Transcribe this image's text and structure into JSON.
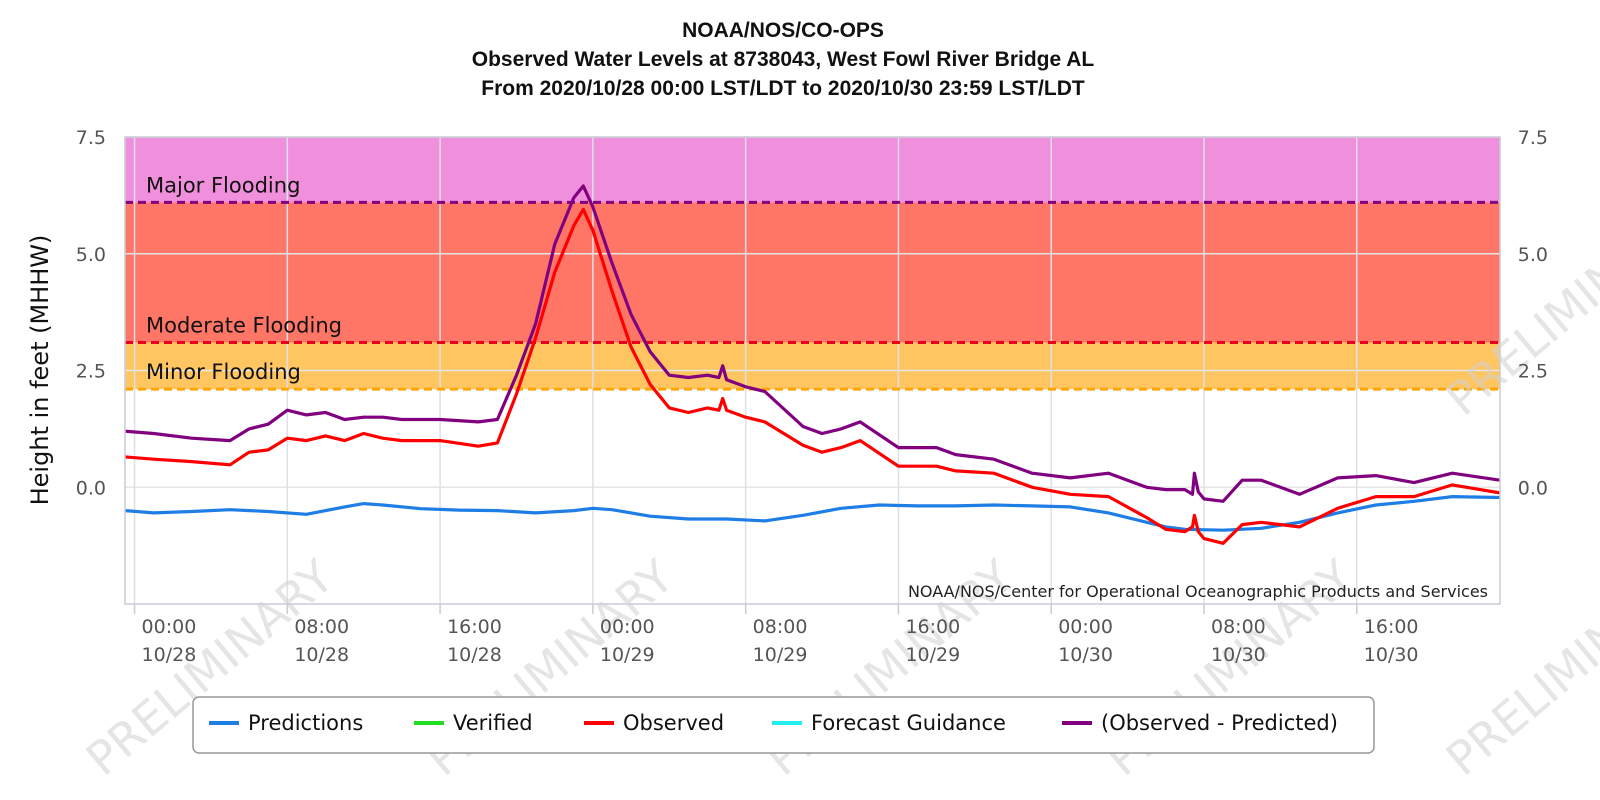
{
  "chart_data": {
    "type": "line",
    "title": "NOAA/NOS/CO-OPS",
    "subtitle_lines": [
      "Observed Water Levels at 8738043, West Fowl River Bridge AL",
      "From 2020/10/28 00:00 LST/LDT to 2020/10/30 23:59 LST/LDT"
    ],
    "ylabel": "Height in feet (MHHW)",
    "ylim": [
      -2.5,
      7.5
    ],
    "xlim_hours": [
      -0.5,
      71.5
    ],
    "y_ticks": [
      {
        "value": 7.5,
        "label": "7.5"
      },
      {
        "value": 5.0,
        "label": "5.0"
      },
      {
        "value": 2.5,
        "label": "2.5"
      },
      {
        "value": 0.0,
        "label": "0.0"
      }
    ],
    "x_ticks": [
      {
        "hour": 0,
        "time": "00:00",
        "date": "10/28"
      },
      {
        "hour": 8,
        "time": "08:00",
        "date": "10/28"
      },
      {
        "hour": 16,
        "time": "16:00",
        "date": "10/28"
      },
      {
        "hour": 24,
        "time": "00:00",
        "date": "10/29"
      },
      {
        "hour": 32,
        "time": "08:00",
        "date": "10/29"
      },
      {
        "hour": 40,
        "time": "16:00",
        "date": "10/29"
      },
      {
        "hour": 48,
        "time": "00:00",
        "date": "10/30"
      },
      {
        "hour": 56,
        "time": "08:00",
        "date": "10/30"
      },
      {
        "hour": 64,
        "time": "16:00",
        "date": "10/30"
      }
    ],
    "thresholds": [
      {
        "name": "Major Flooding",
        "value": 6.1,
        "color": "#800080",
        "band_color": "#f08fdb"
      },
      {
        "name": "Moderate Flooding",
        "value": 3.1,
        "color": "#e8001c",
        "band_color": "#ff7566"
      },
      {
        "name": "Minor Flooding",
        "value": 2.1,
        "color": "#ffa500",
        "band_color": "#ffc560"
      }
    ],
    "credit": "NOAA/NOS/Center for Operational Oceanographic Products and Services",
    "watermark": "PRELIMINARY",
    "legend": {
      "placement": "bottom",
      "items": [
        {
          "name": "Predictions",
          "color": "#1e7ee6"
        },
        {
          "name": "Verified",
          "color": "#22dd22"
        },
        {
          "name": "Observed",
          "color": "#ff0000"
        },
        {
          "name": "Forecast Guidance",
          "color": "#22eeee"
        },
        {
          "name": "(Observed - Predicted)",
          "color": "#800080"
        }
      ]
    },
    "series": [
      {
        "name": "Predictions",
        "color": "#1e7ee6",
        "x": [
          -0.5,
          1,
          3,
          5,
          7,
          9,
          11,
          12,
          13,
          15,
          17,
          19,
          21,
          23,
          24,
          25,
          27,
          29,
          31,
          33,
          35,
          37,
          39,
          41,
          43,
          45,
          47,
          49,
          51,
          53,
          54,
          55,
          57,
          59,
          61,
          63,
          65,
          67,
          69,
          71.5
        ],
        "y": [
          -0.5,
          -0.55,
          -0.52,
          -0.48,
          -0.52,
          -0.58,
          -0.42,
          -0.35,
          -0.38,
          -0.46,
          -0.49,
          -0.5,
          -0.55,
          -0.5,
          -0.45,
          -0.48,
          -0.62,
          -0.68,
          -0.68,
          -0.72,
          -0.6,
          -0.45,
          -0.38,
          -0.4,
          -0.4,
          -0.38,
          -0.4,
          -0.42,
          -0.55,
          -0.75,
          -0.85,
          -0.9,
          -0.92,
          -0.88,
          -0.75,
          -0.55,
          -0.38,
          -0.3,
          -0.2,
          -0.22
        ]
      },
      {
        "name": "Observed",
        "color": "#ff0000",
        "x": [
          -0.5,
          1,
          3,
          5,
          6,
          7,
          8,
          9,
          10,
          11,
          12,
          13,
          14,
          16,
          18,
          19,
          20,
          21,
          22,
          23,
          23.5,
          24,
          25,
          26,
          27,
          28,
          29,
          30,
          30.6,
          30.8,
          31,
          32,
          33,
          35,
          36,
          37,
          38,
          40,
          42,
          43,
          45,
          47,
          49,
          51,
          53,
          54,
          55,
          55.4,
          55.5,
          55.7,
          56,
          57,
          58,
          59,
          61,
          63,
          65,
          67,
          69,
          71.5
        ],
        "y": [
          0.65,
          0.6,
          0.55,
          0.48,
          0.75,
          0.8,
          1.05,
          1.0,
          1.1,
          1.0,
          1.15,
          1.05,
          1.0,
          1.0,
          0.88,
          0.95,
          2.0,
          3.2,
          4.6,
          5.6,
          5.95,
          5.5,
          4.2,
          3.0,
          2.2,
          1.7,
          1.6,
          1.7,
          1.65,
          1.9,
          1.65,
          1.5,
          1.4,
          0.9,
          0.75,
          0.85,
          1.0,
          0.45,
          0.45,
          0.35,
          0.3,
          0.0,
          -0.15,
          -0.2,
          -0.65,
          -0.9,
          -0.95,
          -0.85,
          -0.6,
          -0.95,
          -1.1,
          -1.2,
          -0.8,
          -0.75,
          -0.85,
          -0.45,
          -0.2,
          -0.2,
          0.05,
          -0.12
        ]
      },
      {
        "name": "(Observed - Predicted)",
        "color": "#800080",
        "x": [
          -0.5,
          1,
          3,
          5,
          6,
          7,
          8,
          9,
          10,
          11,
          12,
          13,
          14,
          16,
          18,
          19,
          20,
          21,
          22,
          23,
          23.5,
          24,
          25,
          26,
          27,
          28,
          29,
          30,
          30.6,
          30.8,
          31,
          32,
          33,
          35,
          36,
          37,
          38,
          40,
          42,
          43,
          45,
          47,
          49,
          51,
          53,
          54,
          55,
          55.4,
          55.5,
          55.7,
          56,
          57,
          58,
          59,
          61,
          63,
          65,
          67,
          69,
          71.5
        ],
        "y": [
          1.2,
          1.15,
          1.05,
          1.0,
          1.25,
          1.35,
          1.65,
          1.55,
          1.6,
          1.45,
          1.5,
          1.5,
          1.45,
          1.45,
          1.4,
          1.45,
          2.4,
          3.5,
          5.2,
          6.2,
          6.45,
          6.0,
          4.8,
          3.7,
          2.9,
          2.4,
          2.35,
          2.4,
          2.35,
          2.6,
          2.3,
          2.15,
          2.05,
          1.3,
          1.15,
          1.25,
          1.4,
          0.85,
          0.85,
          0.7,
          0.6,
          0.3,
          0.2,
          0.3,
          0.0,
          -0.05,
          -0.05,
          -0.15,
          0.3,
          -0.1,
          -0.25,
          -0.3,
          0.15,
          0.15,
          -0.15,
          0.2,
          0.25,
          0.1,
          0.3,
          0.15
        ]
      }
    ]
  }
}
